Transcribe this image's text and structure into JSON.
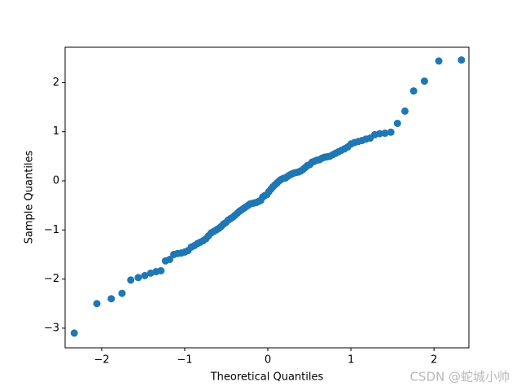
{
  "chart_data": {
    "type": "scatter",
    "xlabel": "Theoretical Quantiles",
    "ylabel": "Sample Quantiles",
    "watermark": "CSDN @蛇城小帅",
    "color": "#1f77b4",
    "xlim": [
      -2.44,
      2.42
    ],
    "ylim": [
      -3.4,
      2.72
    ],
    "xticks": [
      {
        "value": -2,
        "label": "−2"
      },
      {
        "value": -1,
        "label": "−1"
      },
      0,
      1,
      2
    ],
    "yticks": [
      {
        "value": -3,
        "label": "−3"
      },
      {
        "value": -2,
        "label": "−2"
      },
      {
        "value": -1,
        "label": "−1"
      },
      0,
      1,
      2
    ],
    "x": [
      -2.33,
      -2.058,
      -1.885,
      -1.755,
      -1.65,
      -1.56,
      -1.481,
      -1.41,
      -1.346,
      -1.287,
      -1.232,
      -1.181,
      -1.132,
      -1.087,
      -1.043,
      -1.001,
      -0.961,
      -0.922,
      -0.885,
      -0.849,
      -0.814,
      -0.779,
      -0.746,
      -0.714,
      -0.682,
      -0.651,
      -0.621,
      -0.591,
      -0.562,
      -0.533,
      -0.505,
      -0.477,
      -0.449,
      -0.422,
      -0.395,
      -0.368,
      -0.342,
      -0.316,
      -0.29,
      -0.264,
      -0.238,
      -0.213,
      -0.187,
      -0.162,
      -0.137,
      -0.112,
      -0.087,
      -0.062,
      -0.037,
      -0.012,
      0.012,
      0.037,
      0.062,
      0.087,
      0.112,
      0.137,
      0.162,
      0.187,
      0.213,
      0.238,
      0.264,
      0.29,
      0.316,
      0.342,
      0.368,
      0.395,
      0.422,
      0.449,
      0.477,
      0.505,
      0.533,
      0.562,
      0.591,
      0.621,
      0.651,
      0.682,
      0.714,
      0.746,
      0.779,
      0.814,
      0.849,
      0.885,
      0.922,
      0.961,
      1.001,
      1.043,
      1.087,
      1.132,
      1.181,
      1.232,
      1.287,
      1.346,
      1.41,
      1.481,
      1.56,
      1.65,
      1.755,
      1.885,
      2.058,
      2.33
    ],
    "values": [
      -3.1,
      -2.5,
      -2.4,
      -2.29,
      -2.02,
      -1.97,
      -1.93,
      -1.88,
      -1.85,
      -1.83,
      -1.63,
      -1.6,
      -1.5,
      -1.48,
      -1.47,
      -1.45,
      -1.42,
      -1.35,
      -1.32,
      -1.28,
      -1.25,
      -1.22,
      -1.18,
      -1.12,
      -1.06,
      -1.03,
      -1.0,
      -0.97,
      -0.93,
      -0.88,
      -0.85,
      -0.8,
      -0.77,
      -0.74,
      -0.7,
      -0.66,
      -0.62,
      -0.59,
      -0.56,
      -0.53,
      -0.5,
      -0.47,
      -0.46,
      -0.45,
      -0.44,
      -0.42,
      -0.4,
      -0.33,
      -0.3,
      -0.28,
      -0.22,
      -0.17,
      -0.12,
      -0.08,
      -0.04,
      0.0,
      0.03,
      0.05,
      0.06,
      0.09,
      0.12,
      0.14,
      0.16,
      0.17,
      0.18,
      0.2,
      0.23,
      0.27,
      0.31,
      0.33,
      0.38,
      0.4,
      0.42,
      0.43,
      0.46,
      0.48,
      0.49,
      0.5,
      0.53,
      0.56,
      0.59,
      0.62,
      0.65,
      0.69,
      0.75,
      0.78,
      0.8,
      0.82,
      0.85,
      0.87,
      0.94,
      0.96,
      0.97,
      0.99,
      1.17,
      1.42,
      1.83,
      2.03,
      2.44,
      2.46
    ]
  }
}
